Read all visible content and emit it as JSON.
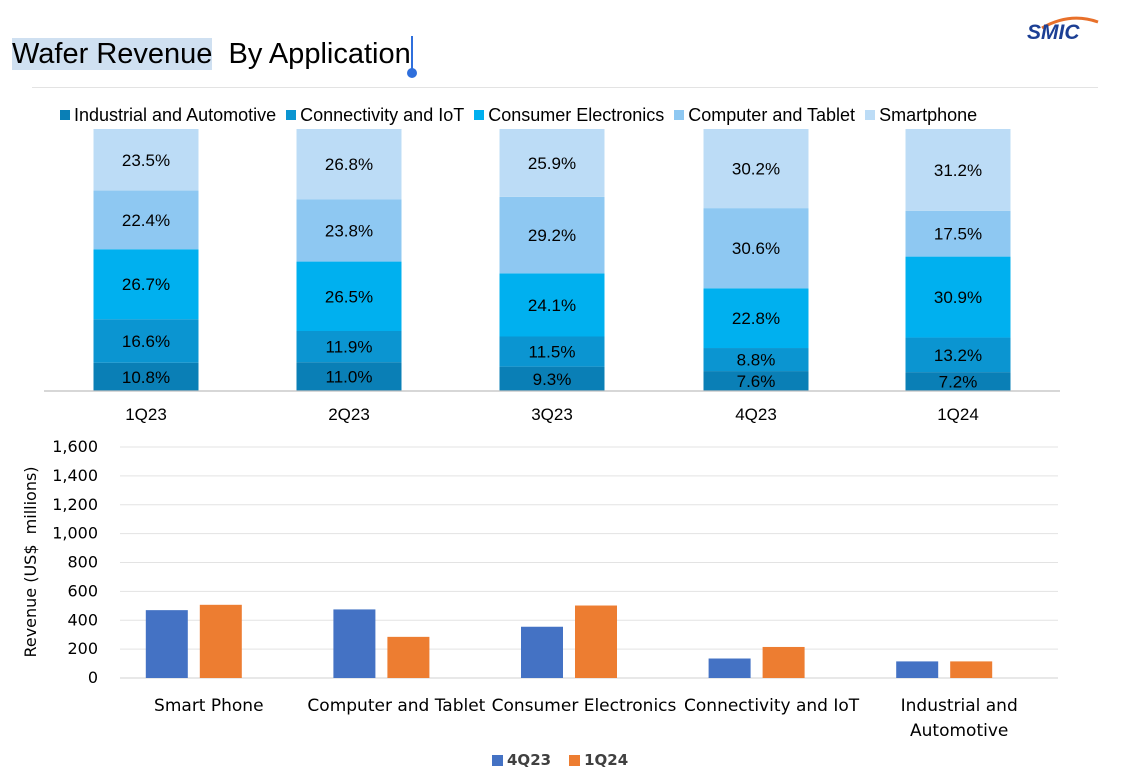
{
  "header": {
    "title_selected": "Wafer Revenue",
    "title_rest": " By Application",
    "logo_text": "SMIC"
  },
  "colors": {
    "industrial": "#0a7fb6",
    "connectivity": "#0b95d1",
    "consumer": "#00b0ef",
    "computer": "#8ec8f2",
    "smartphone": "#bcdcf6",
    "series_4q23": "#4472c4",
    "series_1q24": "#ed7d31"
  },
  "chart_data": [
    {
      "type": "bar",
      "stacked": true,
      "normalized": "percent",
      "categories": [
        "1Q23",
        "2Q23",
        "3Q23",
        "4Q23",
        "1Q24"
      ],
      "series": [
        {
          "name": "Industrial and Automotive",
          "values": [
            10.8,
            11.0,
            9.3,
            7.6,
            7.2
          ],
          "labels": [
            "10.8%",
            "11.0%",
            "9.3%",
            "7.6%",
            "7.2%"
          ]
        },
        {
          "name": "Connectivity and IoT",
          "values": [
            16.6,
            11.9,
            11.5,
            8.8,
            13.2
          ],
          "labels": [
            "16.6%",
            "11.9%",
            "11.5%",
            "8.8%",
            "13.2%"
          ]
        },
        {
          "name": "Consumer Electronics",
          "values": [
            26.7,
            26.5,
            24.1,
            22.8,
            30.9
          ],
          "labels": [
            "26.7%",
            "26.5%",
            "24.1%",
            "22.8%",
            "30.9%"
          ]
        },
        {
          "name": "Computer and Tablet",
          "values": [
            22.4,
            23.8,
            29.2,
            30.6,
            17.5
          ],
          "labels": [
            "22.4%",
            "23.8%",
            "29.2%",
            "30.6%",
            "17.5%"
          ]
        },
        {
          "name": "Smartphone",
          "values": [
            23.5,
            26.8,
            25.9,
            30.2,
            31.2
          ],
          "labels": [
            "23.5%",
            "26.8%",
            "25.9%",
            "30.2%",
            "31.2%"
          ]
        }
      ],
      "legend_position": "top",
      "ylim": [
        0,
        100
      ],
      "grid": false
    },
    {
      "type": "bar",
      "categories": [
        [
          "Smart Phone"
        ],
        [
          "Computer and Tablet"
        ],
        [
          "Consumer Electronics"
        ],
        [
          "Connectivity and IoT"
        ],
        [
          "Industrial and",
          "Automotive"
        ]
      ],
      "series": [
        {
          "name": "4Q23",
          "values": [
            470,
            475,
            355,
            135,
            115
          ]
        },
        {
          "name": "1Q24",
          "values": [
            507,
            285,
            502,
            215,
            115
          ]
        }
      ],
      "ylabel": "Revenue (US$  millions)",
      "ylim": [
        0,
        1600
      ],
      "yticks": [
        "0",
        "200",
        "400",
        "600",
        "800",
        "1,000",
        "1,200",
        "1,400",
        "1,600"
      ],
      "ytick_values": [
        0,
        200,
        400,
        600,
        800,
        1000,
        1200,
        1400,
        1600
      ],
      "grid": true,
      "legend_position": "bottom"
    }
  ]
}
